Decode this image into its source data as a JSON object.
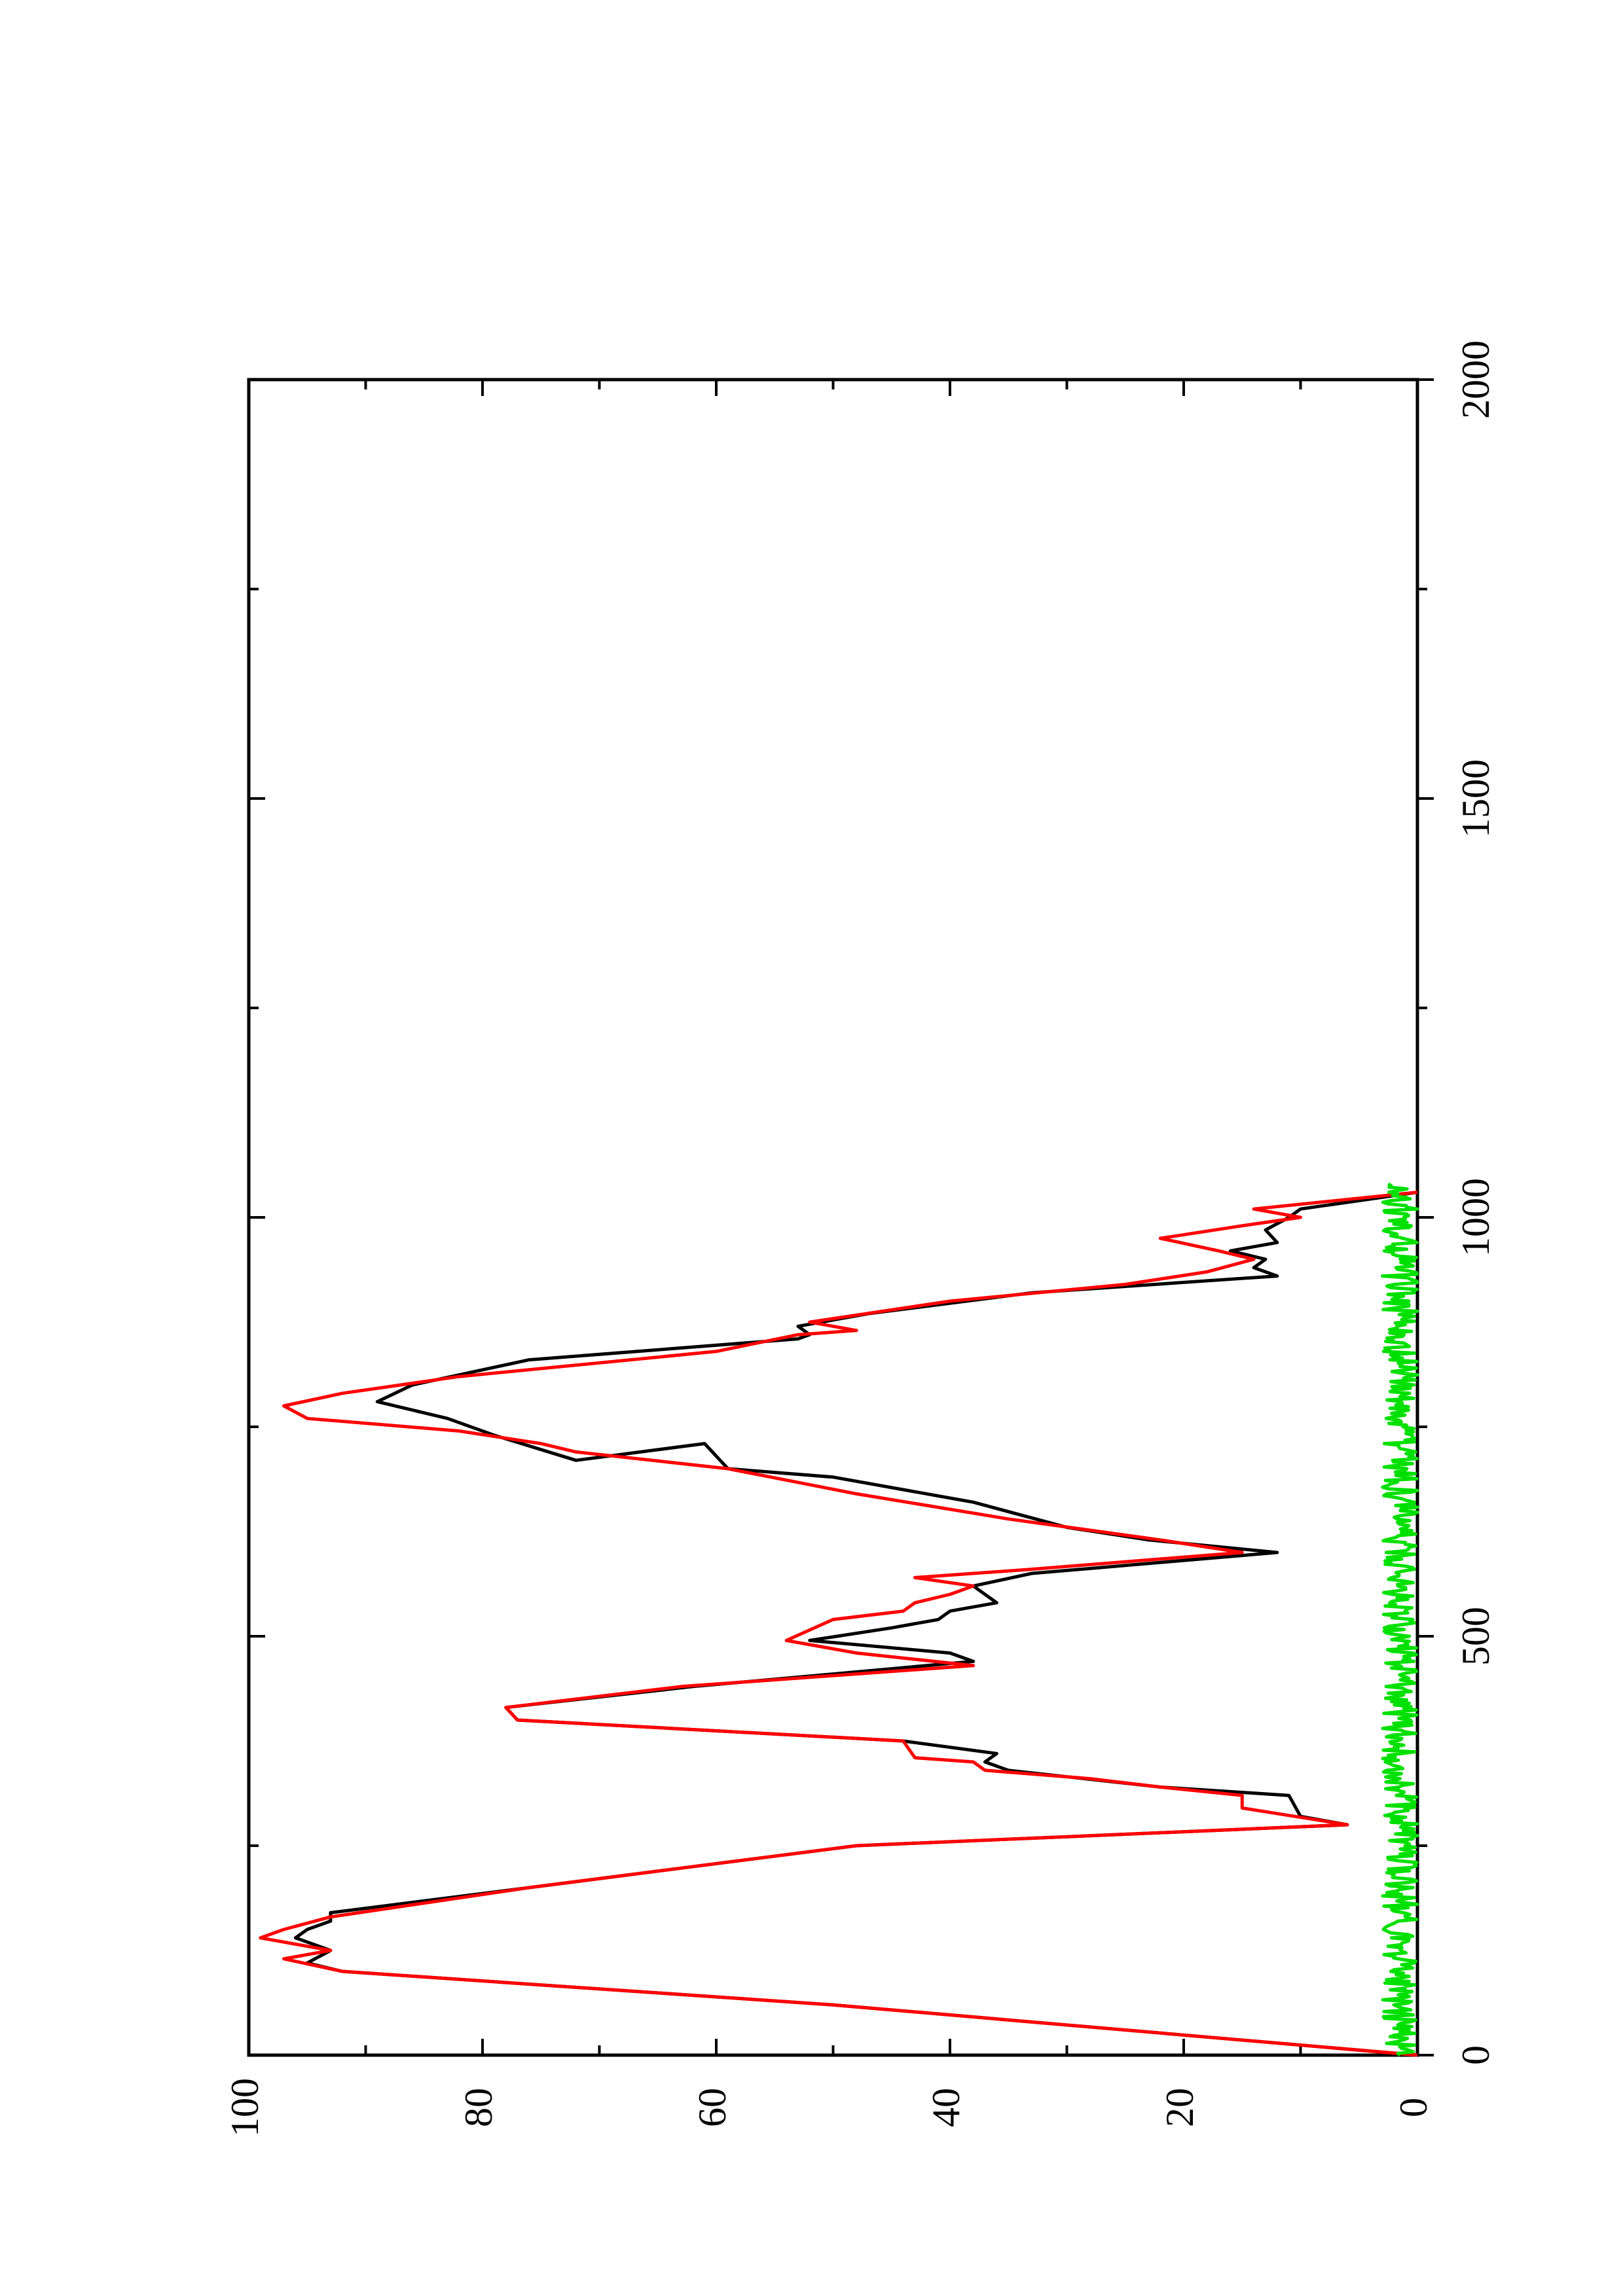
{
  "chart_data": {
    "type": "line",
    "orientation": "rotated-90-ccw",
    "title": "",
    "xlabel": "",
    "ylabel": "",
    "xlim": [
      0,
      2000
    ],
    "ylim": [
      0,
      100
    ],
    "x_ticks": [
      0,
      500,
      1000,
      1500,
      2000
    ],
    "y_ticks": [
      0,
      20,
      40,
      60,
      80,
      100
    ],
    "x_tick_labels": [
      "0",
      "500",
      "1000",
      "1500",
      "2000"
    ],
    "y_tick_labels": [
      "0",
      "20",
      "40",
      "60",
      "80",
      "100"
    ],
    "grid": false,
    "legend": "none",
    "series": [
      {
        "color": "#000000",
        "points": [
          [
            0,
            0
          ],
          [
            60,
            50
          ],
          [
            100,
            92
          ],
          [
            110,
            95
          ],
          [
            125,
            93
          ],
          [
            140,
            96
          ],
          [
            150,
            95
          ],
          [
            160,
            93
          ],
          [
            170,
            93
          ],
          [
            200,
            76
          ],
          [
            250,
            48
          ],
          [
            275,
            6
          ],
          [
            285,
            10
          ],
          [
            310,
            11
          ],
          [
            320,
            22
          ],
          [
            340,
            35
          ],
          [
            350,
            37
          ],
          [
            360,
            36
          ],
          [
            375,
            44
          ],
          [
            400,
            77
          ],
          [
            415,
            78
          ],
          [
            440,
            62
          ],
          [
            470,
            38
          ],
          [
            480,
            40
          ],
          [
            495,
            52
          ],
          [
            510,
            45
          ],
          [
            520,
            41
          ],
          [
            530,
            40
          ],
          [
            540,
            36
          ],
          [
            550,
            37
          ],
          [
            560,
            38
          ],
          [
            575,
            33
          ],
          [
            600,
            12
          ],
          [
            615,
            23
          ],
          [
            630,
            30
          ],
          [
            660,
            38
          ],
          [
            690,
            50
          ],
          [
            700,
            59
          ],
          [
            730,
            61
          ],
          [
            710,
            72
          ],
          [
            740,
            79
          ],
          [
            760,
            83
          ],
          [
            780,
            89
          ],
          [
            800,
            86
          ],
          [
            830,
            76
          ],
          [
            855,
            53
          ],
          [
            860,
            52
          ],
          [
            870,
            53
          ],
          [
            885,
            47
          ],
          [
            910,
            33
          ],
          [
            930,
            12
          ],
          [
            940,
            14
          ],
          [
            950,
            13
          ],
          [
            960,
            16
          ],
          [
            970,
            12
          ],
          [
            985,
            13
          ],
          [
            1000,
            11
          ],
          [
            1010,
            10
          ],
          [
            1030,
            0
          ]
        ]
      },
      {
        "color": "#ff0000",
        "points": [
          [
            0,
            0
          ],
          [
            60,
            50
          ],
          [
            100,
            92
          ],
          [
            115,
            97
          ],
          [
            125,
            93
          ],
          [
            140,
            99
          ],
          [
            150,
            97
          ],
          [
            165,
            93
          ],
          [
            200,
            76
          ],
          [
            250,
            48
          ],
          [
            275,
            6
          ],
          [
            295,
            15
          ],
          [
            310,
            15
          ],
          [
            320,
            22
          ],
          [
            330,
            28
          ],
          [
            340,
            37
          ],
          [
            350,
            38
          ],
          [
            355,
            43
          ],
          [
            375,
            44
          ],
          [
            400,
            77
          ],
          [
            415,
            78
          ],
          [
            440,
            63
          ],
          [
            465,
            38
          ],
          [
            480,
            48
          ],
          [
            495,
            54
          ],
          [
            520,
            50
          ],
          [
            530,
            44
          ],
          [
            540,
            43
          ],
          [
            550,
            40
          ],
          [
            560,
            38
          ],
          [
            570,
            43
          ],
          [
            580,
            33
          ],
          [
            600,
            15
          ],
          [
            615,
            22
          ],
          [
            640,
            35
          ],
          [
            670,
            48
          ],
          [
            700,
            59
          ],
          [
            720,
            72
          ],
          [
            730,
            75
          ],
          [
            745,
            82
          ],
          [
            760,
            95
          ],
          [
            775,
            97
          ],
          [
            790,
            92
          ],
          [
            810,
            82
          ],
          [
            840,
            60
          ],
          [
            860,
            53
          ],
          [
            865,
            48
          ],
          [
            875,
            52
          ],
          [
            900,
            40
          ],
          [
            920,
            25
          ],
          [
            935,
            18
          ],
          [
            950,
            14
          ],
          [
            960,
            17
          ],
          [
            975,
            22
          ],
          [
            990,
            15
          ],
          [
            1000,
            10
          ],
          [
            1010,
            14
          ],
          [
            1030,
            0
          ]
        ]
      },
      {
        "color": "#00e000",
        "noise_amplitude": 3,
        "x_range": [
          0,
          1040
        ]
      }
    ]
  }
}
